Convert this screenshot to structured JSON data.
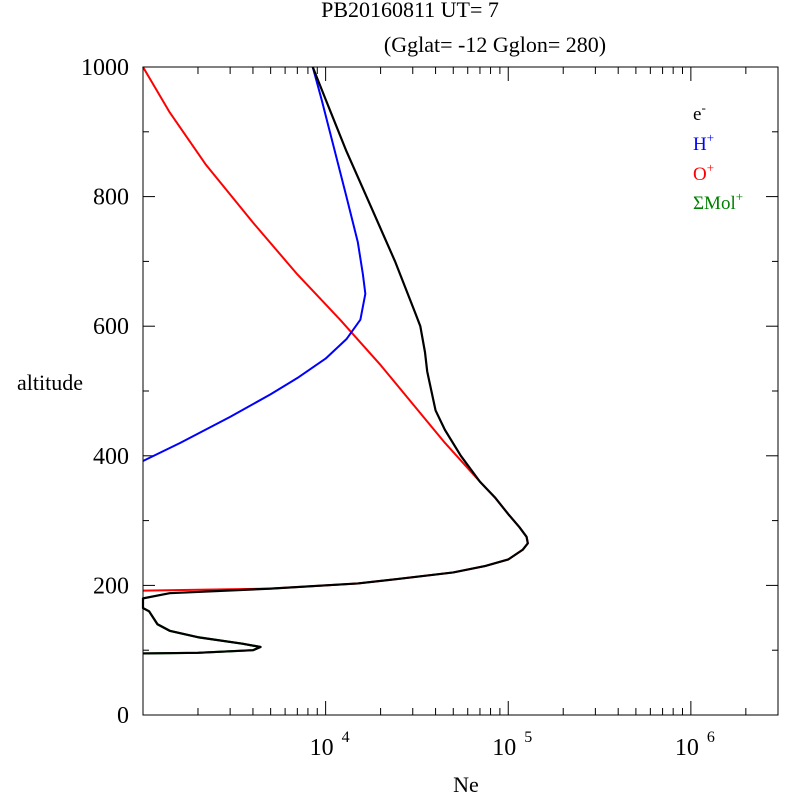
{
  "chart_data": {
    "type": "line",
    "title_line1": "PB20160811   UT=  7",
    "title_line2": "(Gglat= -12   Gglon=  280)",
    "xlabel": "Ne",
    "ylabel": "altitude",
    "x_scale": "log",
    "xlim": [
      1000,
      3000000
    ],
    "ylim": [
      0,
      1000
    ],
    "x_ticks": [
      {
        "base": "10",
        "exp": "4",
        "value": 10000
      },
      {
        "base": "10",
        "exp": "5",
        "value": 100000
      },
      {
        "base": "10",
        "exp": "6",
        "value": 1000000
      }
    ],
    "y_ticks": [
      "0",
      "200",
      "400",
      "600",
      "800",
      "1000"
    ],
    "legend_position": "top-right",
    "series": [
      {
        "name": "e",
        "name_sup": "-",
        "color": "#000000",
        "points": [
          [
            1000,
            95
          ],
          [
            2000,
            96
          ],
          [
            4000,
            100
          ],
          [
            4400,
            105
          ],
          [
            3500,
            110
          ],
          [
            2000,
            120
          ],
          [
            1400,
            130
          ],
          [
            1200,
            140
          ],
          [
            1080,
            160
          ],
          [
            1000,
            165
          ],
          [
            1000,
            180
          ],
          [
            1400,
            188
          ],
          [
            5000,
            195
          ],
          [
            15000,
            203
          ],
          [
            25000,
            210
          ],
          [
            50000,
            220
          ],
          [
            75000,
            230
          ],
          [
            100000,
            240
          ],
          [
            120000,
            255
          ],
          [
            128000,
            265
          ],
          [
            126000,
            275
          ],
          [
            115000,
            290
          ],
          [
            100000,
            310
          ],
          [
            85000,
            335
          ],
          [
            70000,
            360
          ],
          [
            55000,
            400
          ],
          [
            45000,
            440
          ],
          [
            40000,
            470
          ],
          [
            36000,
            530
          ],
          [
            35000,
            560
          ],
          [
            33000,
            600
          ],
          [
            31000,
            620
          ],
          [
            24000,
            700
          ],
          [
            18000,
            780
          ],
          [
            13000,
            870
          ],
          [
            10000,
            950
          ],
          [
            8500,
            1000
          ]
        ]
      },
      {
        "name": "H",
        "name_sup": "+",
        "color": "#0000ff",
        "points": [
          [
            1000,
            392
          ],
          [
            1600,
            420
          ],
          [
            3000,
            460
          ],
          [
            5000,
            495
          ],
          [
            7000,
            520
          ],
          [
            10000,
            550
          ],
          [
            13000,
            580
          ],
          [
            15500,
            610
          ],
          [
            16500,
            650
          ],
          [
            16000,
            680
          ],
          [
            15000,
            730
          ],
          [
            13000,
            800
          ],
          [
            11000,
            880
          ],
          [
            9500,
            950
          ],
          [
            8500,
            1000
          ]
        ]
      },
      {
        "name": "O",
        "name_sup": "+",
        "color": "#ff0000",
        "points": [
          [
            1000,
            192
          ],
          [
            5000,
            195
          ],
          [
            15000,
            203
          ],
          [
            25000,
            210
          ],
          [
            50000,
            220
          ],
          [
            75000,
            230
          ],
          [
            100000,
            240
          ],
          [
            120000,
            255
          ],
          [
            128000,
            265
          ],
          [
            126000,
            275
          ],
          [
            115000,
            290
          ],
          [
            100000,
            310
          ],
          [
            85000,
            335
          ],
          [
            70000,
            360
          ],
          [
            45000,
            420
          ],
          [
            30000,
            480
          ],
          [
            20000,
            540
          ],
          [
            12000,
            610
          ],
          [
            7000,
            680
          ],
          [
            4000,
            760
          ],
          [
            2200,
            850
          ],
          [
            1400,
            930
          ],
          [
            1000,
            1000
          ]
        ]
      },
      {
        "name": "ΣMol",
        "name_sup": "+",
        "color": "#008000",
        "points": [
          [
            1000,
            95
          ],
          [
            2000,
            96
          ],
          [
            4000,
            100
          ],
          [
            4400,
            105
          ],
          [
            3500,
            110
          ],
          [
            2000,
            120
          ],
          [
            1400,
            130
          ],
          [
            1200,
            140
          ],
          [
            1080,
            160
          ],
          [
            1000,
            165
          ]
        ]
      }
    ]
  }
}
